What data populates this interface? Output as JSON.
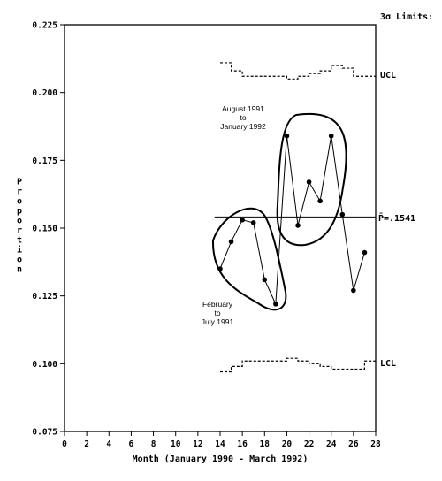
{
  "chart_data": {
    "type": "line",
    "title": "",
    "xlabel": "Month (January 1990 - March 1992)",
    "ylabel": "Proportion",
    "xlim": [
      0,
      28
    ],
    "ylim": [
      0.075,
      0.225
    ],
    "xticks": [
      "0",
      "2",
      "4",
      "6",
      "8",
      "10",
      "12",
      "14",
      "16",
      "18",
      "20",
      "22",
      "24",
      "26",
      "28"
    ],
    "yticks": [
      "0.075",
      "0.100",
      "0.125",
      "0.150",
      "0.175",
      "0.200",
      "0.225"
    ],
    "grid": false,
    "series": [
      {
        "x": [
          14,
          15,
          16,
          17,
          18,
          19,
          20,
          21,
          22,
          23,
          24,
          25,
          26,
          27
        ],
        "y": [
          0.135,
          0.145,
          0.153,
          0.152,
          0.131,
          0.122,
          0.184,
          0.151,
          0.167,
          0.16,
          0.184,
          0.155,
          0.127,
          0.141
        ]
      }
    ],
    "center_line": {
      "value": 0.1541,
      "label": "P̄=.1541"
    },
    "ucl": {
      "label": "UCL",
      "x": [
        14,
        15,
        16,
        17,
        18,
        19,
        20,
        21,
        22,
        23,
        24,
        25,
        26,
        27,
        28
      ],
      "y": [
        0.211,
        0.208,
        0.206,
        0.206,
        0.206,
        0.206,
        0.205,
        0.206,
        0.207,
        0.208,
        0.21,
        0.209,
        0.206,
        0.206,
        0.206
      ]
    },
    "lcl": {
      "label": "LCL",
      "x": [
        14,
        15,
        16,
        17,
        18,
        19,
        20,
        21,
        22,
        23,
        24,
        25,
        26,
        27,
        28
      ],
      "y": [
        0.097,
        0.099,
        0.101,
        0.101,
        0.101,
        0.101,
        0.102,
        0.101,
        0.1,
        0.099,
        0.098,
        0.098,
        0.098,
        0.101,
        0.101
      ]
    },
    "limits_label": "3σ Limits:",
    "annotations": [
      {
        "lines": [
          "August 1991",
          "to",
          "January 1992"
        ]
      },
      {
        "lines": [
          "February",
          "to",
          "July 1991"
        ]
      }
    ]
  }
}
